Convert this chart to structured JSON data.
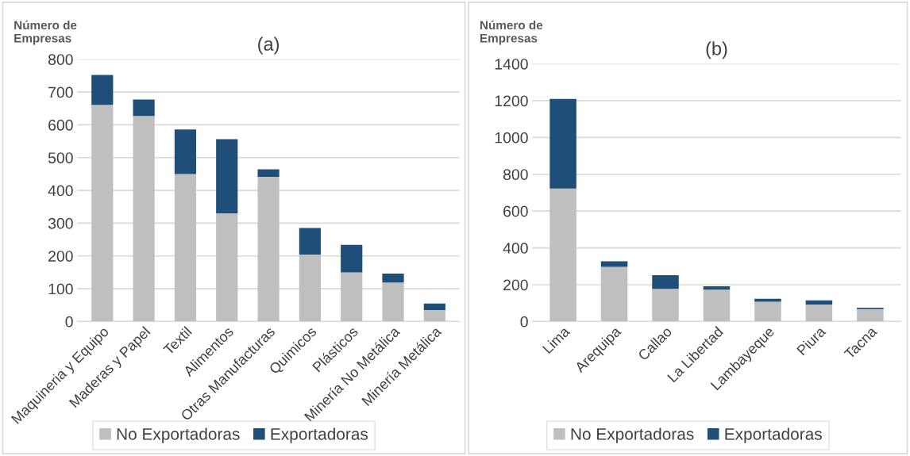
{
  "chart_data": [
    {
      "type": "bar",
      "title": "(a)",
      "ylabel": "Número de\nEmpresas",
      "stacked": true,
      "grid": "y",
      "legend": "bottom",
      "categories": [
        "Maquineria y Equipo",
        "Maderas y Papel",
        "Textil",
        "Alimentos",
        "Otras Manufacturas",
        "Quimicos",
        "Plásticos",
        "Minería No Metálica",
        "Minería Metálica"
      ],
      "series": [
        {
          "name": "No Exportadoras",
          "color": "#bfbfbf",
          "values": [
            661,
            627,
            450,
            330,
            441,
            204,
            150,
            119,
            35
          ]
        },
        {
          "name": "Exportadoras",
          "color": "#1f4e79",
          "values": [
            91,
            50,
            136,
            226,
            23,
            81,
            84,
            27,
            20
          ]
        }
      ],
      "ylim": [
        0,
        800
      ],
      "yticks": [
        0,
        100,
        200,
        300,
        400,
        500,
        600,
        700,
        800
      ]
    },
    {
      "type": "bar",
      "title": "(b)",
      "ylabel": "Número de\nEmpresas",
      "stacked": true,
      "grid": "y",
      "legend": "bottom",
      "categories": [
        "Lima",
        "Arequipa",
        "Callao",
        "La Libertad",
        "Lambayeque",
        "Piura",
        "Tacna"
      ],
      "series": [
        {
          "name": "No Exportadoras",
          "color": "#bfbfbf",
          "values": [
            722,
            297,
            177,
            173,
            107,
            92,
            67
          ]
        },
        {
          "name": "Exportadoras",
          "color": "#1f4e79",
          "values": [
            487,
            30,
            75,
            18,
            16,
            23,
            8
          ]
        }
      ],
      "ylim": [
        0,
        1400
      ],
      "yticks": [
        0,
        200,
        400,
        600,
        800,
        1000,
        1200,
        1400
      ]
    }
  ]
}
